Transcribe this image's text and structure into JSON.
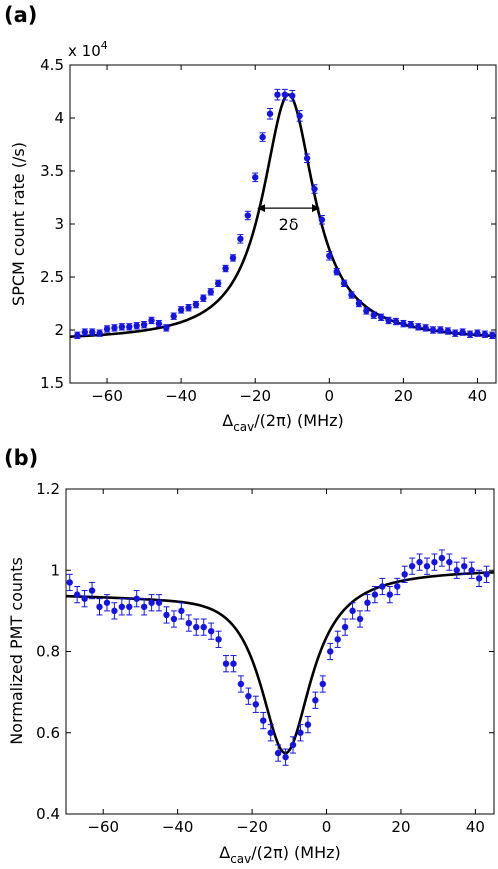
{
  "chart_data": [
    {
      "panel_label": "(a)",
      "type": "scatter",
      "xlabel_main": "Δ",
      "xlabel_sub": "cav",
      "xlabel_rest": "/(2π) (MHz)",
      "ylabel": "SPCM count rate (/s)",
      "multiplier_label": "x 10",
      "multiplier_exp": "4",
      "xlim": [
        -70,
        45
      ],
      "ylim": [
        1.5,
        4.5
      ],
      "xticks": [
        -60,
        -40,
        -20,
        0,
        20,
        40
      ],
      "yticks": [
        1.5,
        2,
        2.5,
        3,
        3.5,
        4,
        4.5
      ],
      "xtick_labels": [
        "−60",
        "−40",
        "−20",
        "0",
        "20",
        "40"
      ],
      "ytick_labels": [
        "1.5",
        "2",
        "2.5",
        "3",
        "3.5",
        "4",
        "4.5"
      ],
      "annotation": "2δ",
      "annotation_span": [
        -19.5,
        -2.5
      ],
      "annotation_y": 3.15,
      "fit": {
        "baseline": 1.89,
        "amplitude": 2.33,
        "center": -11,
        "hwhm": 8.5
      },
      "series": [
        {
          "x": [
            -68,
            -66,
            -64,
            -62,
            -60,
            -58,
            -56,
            -54,
            -52,
            -50,
            -48,
            -46,
            -44,
            -42,
            -40,
            -38,
            -36,
            -34,
            -32,
            -30,
            -28,
            -26,
            -24,
            -22,
            -20,
            -18,
            -16,
            -14,
            -12,
            -10,
            -8,
            -6,
            -4,
            -2,
            0,
            2,
            4,
            6,
            8,
            10,
            12,
            14,
            16,
            18,
            20,
            22,
            24,
            26,
            28,
            30,
            32,
            34,
            36,
            38,
            40,
            42,
            44
          ],
          "y": [
            1.95,
            1.98,
            1.98,
            1.97,
            2.01,
            2.02,
            2.03,
            2.03,
            2.04,
            2.05,
            2.09,
            2.06,
            2.02,
            2.13,
            2.19,
            2.21,
            2.24,
            2.3,
            2.36,
            2.44,
            2.58,
            2.68,
            2.86,
            3.08,
            3.44,
            3.82,
            4.04,
            4.22,
            4.22,
            4.21,
            4.02,
            3.62,
            3.33,
            3.04,
            2.7,
            2.55,
            2.44,
            2.33,
            2.25,
            2.18,
            2.14,
            2.12,
            2.09,
            2.08,
            2.06,
            2.05,
            2.03,
            2.02,
            2.0,
            2.0,
            1.99,
            1.97,
            1.98,
            1.96,
            1.97,
            1.96,
            1.95
          ],
          "err": [
            0.03,
            0.03,
            0.03,
            0.03,
            0.03,
            0.03,
            0.03,
            0.03,
            0.03,
            0.03,
            0.03,
            0.03,
            0.03,
            0.03,
            0.03,
            0.03,
            0.03,
            0.03,
            0.03,
            0.03,
            0.03,
            0.03,
            0.04,
            0.04,
            0.04,
            0.04,
            0.05,
            0.05,
            0.05,
            0.05,
            0.05,
            0.04,
            0.04,
            0.04,
            0.04,
            0.03,
            0.03,
            0.03,
            0.03,
            0.03,
            0.03,
            0.03,
            0.03,
            0.03,
            0.03,
            0.03,
            0.03,
            0.03,
            0.03,
            0.03,
            0.03,
            0.03,
            0.03,
            0.03,
            0.03,
            0.03,
            0.03
          ]
        }
      ]
    },
    {
      "panel_label": "(b)",
      "type": "scatter",
      "xlabel_main": "Δ",
      "xlabel_sub": "cav",
      "xlabel_rest": "/(2π) (MHz)",
      "ylabel": "Normalized PMT counts",
      "xlim": [
        -70,
        45
      ],
      "ylim": [
        0.4,
        1.2
      ],
      "xticks": [
        -60,
        -40,
        -20,
        0,
        20,
        40
      ],
      "yticks": [
        0.4,
        0.6,
        0.8,
        1,
        1.2
      ],
      "xtick_labels": [
        "−60",
        "−40",
        "−20",
        "0",
        "20",
        "40"
      ],
      "ytick_labels": [
        "0.4",
        "0.6",
        "0.8",
        "1",
        "1.2"
      ],
      "fit": {
        "baseline": 1.005,
        "amplitude": -0.45,
        "center": -11,
        "hwhm": 8.5,
        "asymmetry": 0.06
      },
      "series": [
        {
          "x": [
            -69,
            -67,
            -65,
            -63,
            -61,
            -59,
            -57,
            -55,
            -53,
            -51,
            -49,
            -47,
            -45,
            -43,
            -41,
            -39,
            -37,
            -35,
            -33,
            -31,
            -29,
            -27,
            -25,
            -23,
            -21,
            -19,
            -17,
            -15,
            -13,
            -11,
            -9,
            -7,
            -5,
            -3,
            -1,
            1,
            3,
            5,
            7,
            9,
            11,
            13,
            15,
            17,
            19,
            21,
            23,
            25,
            27,
            29,
            31,
            33,
            35,
            37,
            39,
            41,
            43
          ],
          "y": [
            0.97,
            0.94,
            0.93,
            0.95,
            0.91,
            0.92,
            0.9,
            0.91,
            0.91,
            0.93,
            0.91,
            0.92,
            0.92,
            0.89,
            0.88,
            0.9,
            0.87,
            0.86,
            0.86,
            0.85,
            0.83,
            0.77,
            0.77,
            0.72,
            0.69,
            0.67,
            0.63,
            0.6,
            0.55,
            0.54,
            0.57,
            0.6,
            0.62,
            0.68,
            0.72,
            0.8,
            0.83,
            0.86,
            0.9,
            0.88,
            0.92,
            0.94,
            0.96,
            0.94,
            0.96,
            0.99,
            1.01,
            1.02,
            1.01,
            1.02,
            1.03,
            1.02,
            1.0,
            1.01,
            1.0,
            0.98,
            0.99
          ],
          "err": [
            0.02,
            0.02,
            0.02,
            0.02,
            0.02,
            0.02,
            0.02,
            0.02,
            0.02,
            0.02,
            0.02,
            0.02,
            0.02,
            0.02,
            0.02,
            0.02,
            0.02,
            0.02,
            0.02,
            0.02,
            0.02,
            0.02,
            0.02,
            0.02,
            0.02,
            0.02,
            0.02,
            0.02,
            0.02,
            0.02,
            0.02,
            0.02,
            0.02,
            0.02,
            0.02,
            0.02,
            0.02,
            0.02,
            0.02,
            0.02,
            0.02,
            0.02,
            0.02,
            0.02,
            0.02,
            0.02,
            0.02,
            0.02,
            0.02,
            0.02,
            0.02,
            0.02,
            0.02,
            0.02,
            0.02,
            0.02,
            0.02
          ]
        }
      ]
    }
  ],
  "colors": {
    "points": "#1414e6",
    "fit": "#000000",
    "axes": "#000000"
  }
}
